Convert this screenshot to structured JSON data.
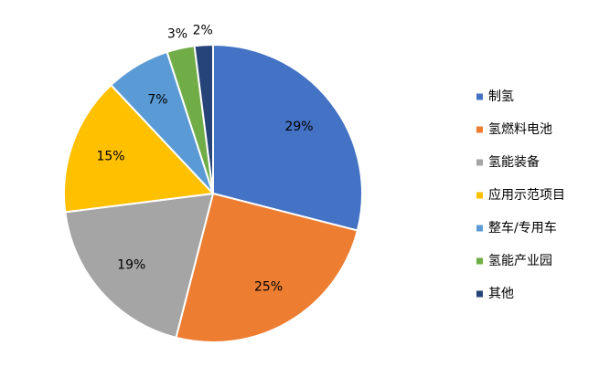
{
  "chart_data": {
    "type": "pie",
    "categories": [
      "制氢",
      "氢燃料电池",
      "氢能装备",
      "应用示范项目",
      "整车/专用车",
      "氢能产业园",
      "其他"
    ],
    "values": [
      29,
      25,
      19,
      15,
      7,
      3,
      2
    ],
    "value_labels": [
      "29%",
      "25%",
      "19%",
      "15%",
      "7%",
      "3%",
      "2%"
    ],
    "colors": [
      "#4472c4",
      "#ed7d31",
      "#a5a5a5",
      "#ffc000",
      "#5b9bd5",
      "#70ad47",
      "#264478"
    ],
    "legend": "right"
  }
}
